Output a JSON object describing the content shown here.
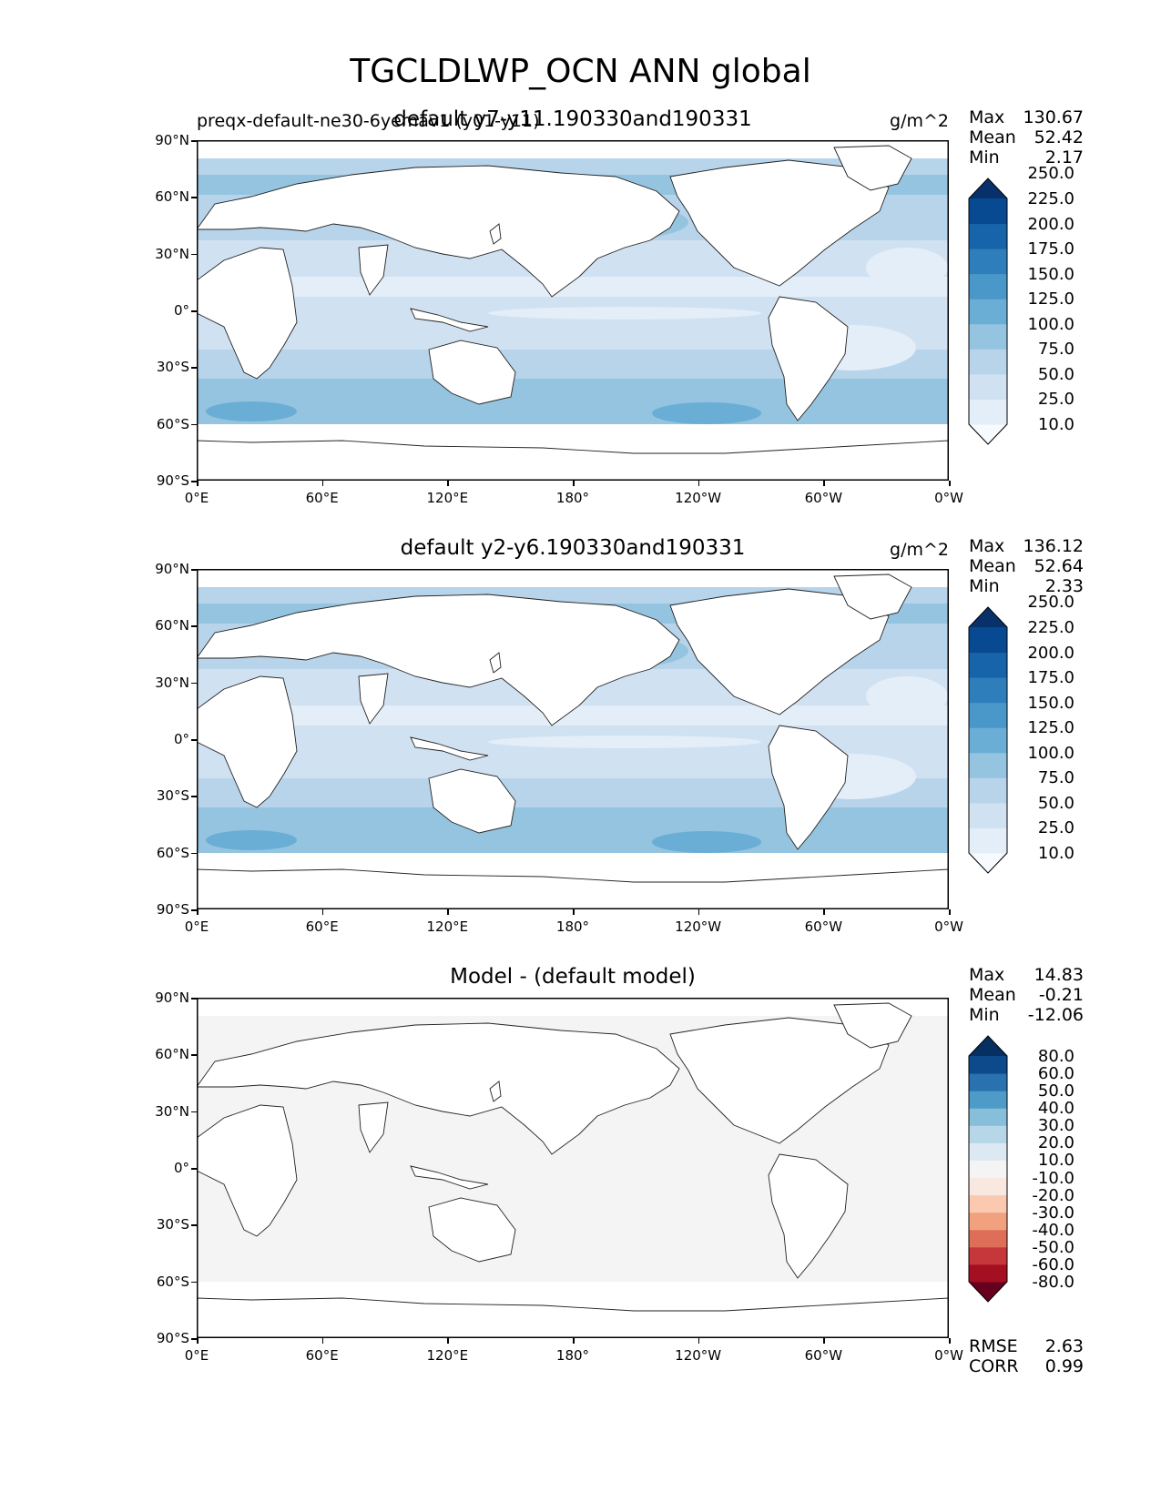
{
  "suptitle": "TGCLDLWP_OCN ANN global",
  "colors": {
    "seq": [
      "#f7fbff",
      "#e3eef8",
      "#d0e1f2",
      "#b7d4ea",
      "#94c4df",
      "#6aaed6",
      "#4a98c9",
      "#2e7ebc",
      "#1764ab",
      "#084a91",
      "#08306b"
    ],
    "div": [
      "#67001f",
      "#a50f22",
      "#c5373a",
      "#de6e58",
      "#f2a17f",
      "#fac9b0",
      "#f9e8df",
      "#f4f4f4",
      "#dde9f2",
      "#b7d6e8",
      "#87beda",
      "#4f9bc7",
      "#2a71b0",
      "#0c4a8c",
      "#053061"
    ]
  },
  "panels": [
    {
      "id": "test",
      "title": "default y7-y11.190330and190331",
      "title_left": "preqx-default-ne30-6yemav1 (y01-y11)",
      "units": "g/m^2",
      "stats": [
        {
          "label": "Max",
          "value": "130.67"
        },
        {
          "label": "Mean",
          "value": "52.42"
        },
        {
          "label": "Min",
          "value": "2.17"
        }
      ],
      "extra_stats": [],
      "colorbar_labels": [
        "10.0",
        "25.0",
        "50.0",
        "75.0",
        "100.0",
        "125.0",
        "150.0",
        "175.0",
        "200.0",
        "225.0",
        "250.0"
      ]
    },
    {
      "id": "ref",
      "title": "default y2-y6.190330and190331",
      "title_left": "",
      "units": "g/m^2",
      "stats": [
        {
          "label": "Max",
          "value": "136.12"
        },
        {
          "label": "Mean",
          "value": "52.64"
        },
        {
          "label": "Min",
          "value": "2.33"
        }
      ],
      "extra_stats": [],
      "colorbar_labels": [
        "10.0",
        "25.0",
        "50.0",
        "75.0",
        "100.0",
        "125.0",
        "150.0",
        "175.0",
        "200.0",
        "225.0",
        "250.0"
      ]
    },
    {
      "id": "diff",
      "title": "Model - (default model)",
      "title_left": "",
      "units": "",
      "stats": [
        {
          "label": "Max",
          "value": "14.83"
        },
        {
          "label": "Mean",
          "value": "-0.21"
        },
        {
          "label": "Min",
          "value": "-12.06"
        }
      ],
      "extra_stats": [
        {
          "label": "RMSE",
          "value": "2.63"
        },
        {
          "label": "CORR",
          "value": "0.99"
        }
      ],
      "colorbar_labels": [
        "-80.0",
        "-60.0",
        "-50.0",
        "-40.0",
        "-30.0",
        "-20.0",
        "-10.0",
        "10.0",
        "20.0",
        "30.0",
        "40.0",
        "50.0",
        "60.0",
        "80.0"
      ]
    }
  ],
  "lat_ticks": [
    "90°N",
    "60°N",
    "30°N",
    "0°",
    "30°S",
    "60°S",
    "90°S"
  ],
  "lon_ticks": [
    "0°E",
    "60°E",
    "120°E",
    "180°",
    "120°W",
    "60°W",
    "0°W"
  ],
  "chart_data": [
    {
      "type": "heatmap",
      "title": "default y7-y11.190330and190331",
      "units": "g/m^2",
      "x_range": [
        "0°E",
        "0°W"
      ],
      "y_range": [
        "90°S",
        "90°N"
      ],
      "levels": [
        10,
        25,
        50,
        75,
        100,
        125,
        150,
        175,
        200,
        225,
        250
      ],
      "max": 130.67,
      "mean": 52.42,
      "min": 2.17
    },
    {
      "type": "heatmap",
      "title": "default y2-y6.190330and190331",
      "units": "g/m^2",
      "x_range": [
        "0°E",
        "0°W"
      ],
      "y_range": [
        "90°S",
        "90°N"
      ],
      "levels": [
        10,
        25,
        50,
        75,
        100,
        125,
        150,
        175,
        200,
        225,
        250
      ],
      "max": 136.12,
      "mean": 52.64,
      "min": 2.33
    },
    {
      "type": "heatmap",
      "title": "Model - (default model)",
      "x_range": [
        "0°E",
        "0°W"
      ],
      "y_range": [
        "90°S",
        "90°N"
      ],
      "levels": [
        -80,
        -60,
        -50,
        -40,
        -30,
        -20,
        -10,
        10,
        20,
        30,
        40,
        50,
        60,
        80
      ],
      "max": 14.83,
      "mean": -0.21,
      "min": -12.06,
      "rmse": 2.63,
      "corr": 0.99
    }
  ]
}
